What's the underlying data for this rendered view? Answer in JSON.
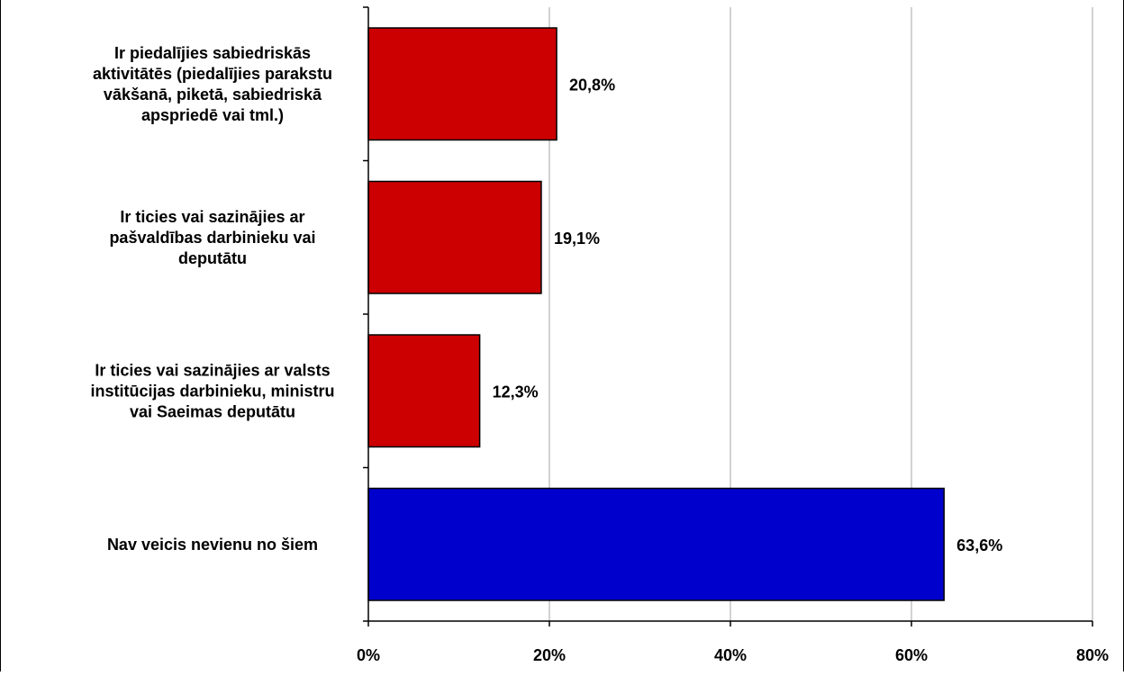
{
  "chart_data": {
    "type": "bar",
    "orientation": "horizontal",
    "categories": [
      [
        "Ir piedalījies  sabiedriskās",
        "aktivitātēs (piedalījies parakstu",
        "vākšanā, piketā, sabiedriskā",
        "apspriedē vai tml.)"
      ],
      [
        "Ir ticies vai sazinājies ar",
        "pašvaldības darbinieku vai",
        "deputātu"
      ],
      [
        "Ir ticies vai sazinājies ar valsts",
        "institūcijas darbinieku, ministru",
        "vai Saeimas deputātu"
      ],
      [
        "Nav veicis nevienu no šiem"
      ]
    ],
    "values": [
      20.8,
      19.1,
      12.3,
      63.6
    ],
    "value_labels": [
      "20,8%",
      "19,1%",
      "12,3%",
      "63,6%"
    ],
    "colors": [
      "#cc0000",
      "#cc0000",
      "#cc0000",
      "#0000cc"
    ],
    "xlim": [
      0,
      80
    ],
    "x_ticks": [
      0,
      20,
      40,
      60,
      80
    ],
    "x_tick_labels": [
      "0%",
      "20%",
      "40%",
      "60%",
      "80%"
    ],
    "grid": "vertical",
    "legend": "none"
  }
}
